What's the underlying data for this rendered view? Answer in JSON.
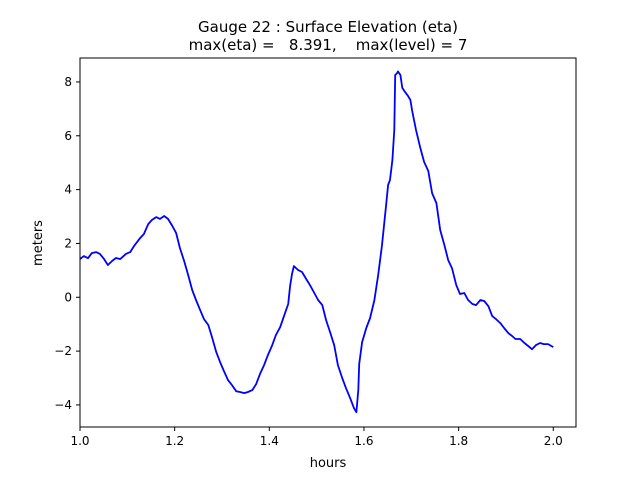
{
  "chart_data": {
    "type": "line",
    "title_line1": "Gauge 22 : Surface Elevation (eta)",
    "title_line2": "max(eta) =   8.391,    max(level) = 7",
    "xlabel": "hours",
    "ylabel": "meters",
    "xlim": [
      1.0,
      2.048
    ],
    "ylim": [
      -4.82,
      8.89
    ],
    "xticks": [
      1.0,
      1.2,
      1.4,
      1.6,
      1.8,
      2.0
    ],
    "xtick_labels": [
      "1.0",
      "1.2",
      "1.4",
      "1.6",
      "1.8",
      "2.0"
    ],
    "yticks": [
      -4,
      -2,
      0,
      2,
      4,
      6,
      8
    ],
    "ytick_labels": [
      "−4",
      "−2",
      "0",
      "2",
      "4",
      "6",
      "8"
    ],
    "grid": false,
    "series": [
      {
        "name": "eta",
        "color": "#0000ff",
        "x": [
          1.0,
          1.008,
          1.017,
          1.025,
          1.034,
          1.042,
          1.051,
          1.059,
          1.068,
          1.076,
          1.085,
          1.097,
          1.106,
          1.114,
          1.127,
          1.135,
          1.144,
          1.152,
          1.161,
          1.169,
          1.178,
          1.186,
          1.195,
          1.203,
          1.211,
          1.22,
          1.228,
          1.237,
          1.245,
          1.254,
          1.262,
          1.271,
          1.279,
          1.288,
          1.296,
          1.304,
          1.313,
          1.321,
          1.33,
          1.338,
          1.347,
          1.355,
          1.364,
          1.372,
          1.381,
          1.389,
          1.397,
          1.406,
          1.414,
          1.423,
          1.431,
          1.44,
          1.444,
          1.448,
          1.452,
          1.461,
          1.469,
          1.478,
          1.486,
          1.495,
          1.503,
          1.512,
          1.52,
          1.529,
          1.537,
          1.545,
          1.554,
          1.562,
          1.571,
          1.579,
          1.584,
          1.588,
          1.59,
          1.596,
          1.605,
          1.613,
          1.622,
          1.63,
          1.638,
          1.647,
          1.651,
          1.655,
          1.66,
          1.664,
          1.666,
          1.67,
          1.672,
          1.677,
          1.681,
          1.685,
          1.693,
          1.698,
          1.702,
          1.71,
          1.719,
          1.727,
          1.736,
          1.744,
          1.753,
          1.761,
          1.77,
          1.778,
          1.786,
          1.795,
          1.803,
          1.812,
          1.82,
          1.829,
          1.837,
          1.846,
          1.854,
          1.863,
          1.871,
          1.879,
          1.888,
          1.896,
          1.905,
          1.913,
          1.92,
          1.93,
          1.939,
          1.947,
          1.955,
          1.963,
          1.972,
          1.98,
          1.989,
          2.0
        ],
        "y": [
          1.42,
          1.53,
          1.45,
          1.64,
          1.68,
          1.61,
          1.42,
          1.2,
          1.35,
          1.46,
          1.42,
          1.61,
          1.68,
          1.9,
          2.2,
          2.35,
          2.72,
          2.87,
          2.98,
          2.91,
          3.02,
          2.91,
          2.65,
          2.39,
          1.83,
          1.35,
          0.86,
          0.27,
          -0.1,
          -0.48,
          -0.81,
          -1.03,
          -1.48,
          -2.04,
          -2.41,
          -2.74,
          -3.08,
          -3.26,
          -3.49,
          -3.52,
          -3.56,
          -3.52,
          -3.45,
          -3.23,
          -2.82,
          -2.52,
          -2.15,
          -1.78,
          -1.4,
          -1.11,
          -0.7,
          -0.25,
          0.42,
          0.86,
          1.16,
          1.01,
          0.94,
          0.68,
          0.45,
          0.16,
          -0.1,
          -0.29,
          -0.85,
          -1.33,
          -1.78,
          -2.52,
          -3.0,
          -3.38,
          -3.75,
          -4.12,
          -4.27,
          -3.45,
          -2.48,
          -1.67,
          -1.14,
          -0.77,
          -0.1,
          0.83,
          1.94,
          3.46,
          4.17,
          4.36,
          5.1,
          6.22,
          8.26,
          8.33,
          8.39,
          8.26,
          7.78,
          7.67,
          7.48,
          7.33,
          6.92,
          6.22,
          5.55,
          5.03,
          4.69,
          3.87,
          3.5,
          2.5,
          1.94,
          1.38,
          1.08,
          0.45,
          0.12,
          0.16,
          -0.1,
          -0.25,
          -0.29,
          -0.1,
          -0.14,
          -0.33,
          -0.7,
          -0.81,
          -0.96,
          -1.14,
          -1.33,
          -1.44,
          -1.55,
          -1.55,
          -1.7,
          -1.81,
          -1.93,
          -1.78,
          -1.7,
          -1.74,
          -1.74,
          -1.85
        ]
      }
    ]
  }
}
